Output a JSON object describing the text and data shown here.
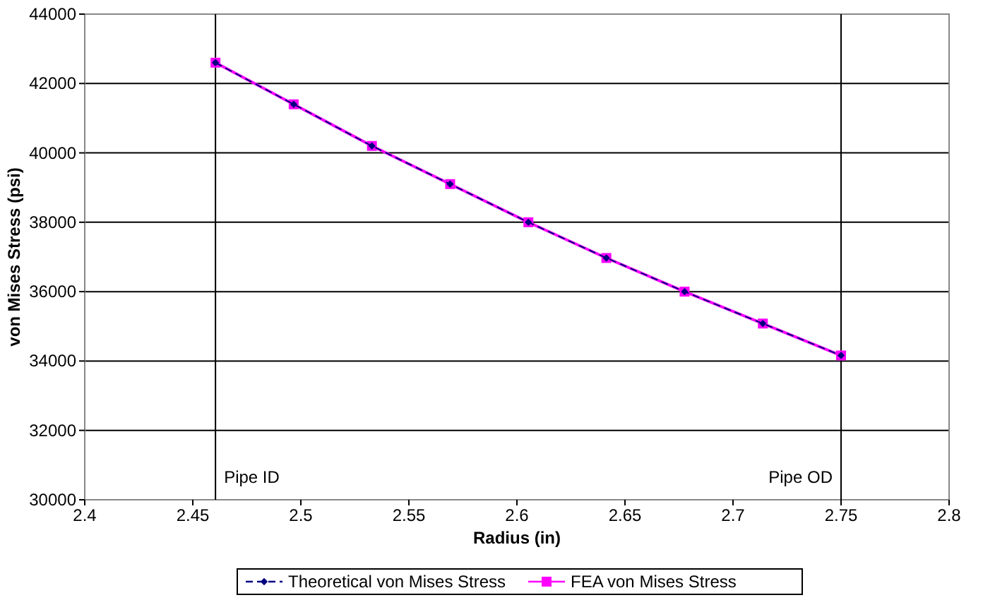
{
  "chart_data": {
    "type": "line",
    "xlabel": "Radius (in)",
    "ylabel": "von Mises Stress (psi)",
    "x": [
      2.4605,
      2.4967,
      2.5329,
      2.5691,
      2.6053,
      2.6414,
      2.6776,
      2.7138,
      2.75
    ],
    "series": [
      {
        "name": "Theoretical von Mises Stress",
        "color": "#000080",
        "marker": "diamond",
        "line_style": "dashed",
        "values": [
          42600,
          41400,
          40200,
          39100,
          38000,
          36970,
          36000,
          35080,
          34160
        ]
      },
      {
        "name": "FEA von Mises Stress",
        "color": "#ff00ff",
        "marker": "square",
        "line_style": "solid",
        "values": [
          42600,
          41400,
          40200,
          39100,
          38000,
          36970,
          36000,
          35080,
          34160
        ]
      }
    ],
    "xlim": [
      2.4,
      2.8
    ],
    "xticks": [
      2.4,
      2.45,
      2.5,
      2.55,
      2.6,
      2.65,
      2.7,
      2.75,
      2.8
    ],
    "ylim": [
      30000,
      44000
    ],
    "yticks": [
      30000,
      32000,
      34000,
      36000,
      38000,
      40000,
      42000,
      44000
    ],
    "grid": "y",
    "legend": "bottom",
    "ref_lines": [
      {
        "axis": "x",
        "value": 2.4605,
        "label": "Pipe ID",
        "color": "#000000"
      },
      {
        "axis": "x",
        "value": 2.75,
        "label": "Pipe OD",
        "color": "#000000"
      }
    ]
  }
}
